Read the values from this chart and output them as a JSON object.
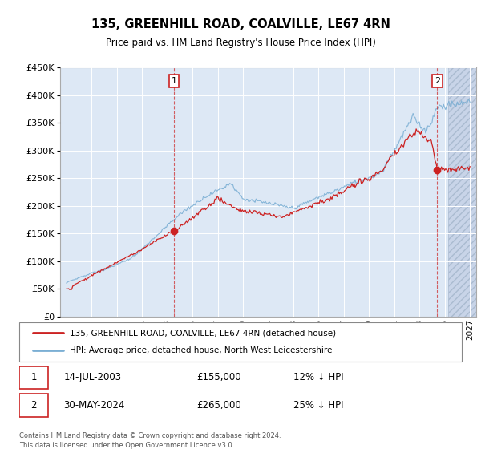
{
  "title": "135, GREENHILL ROAD, COALVILLE, LE67 4RN",
  "subtitle": "Price paid vs. HM Land Registry's House Price Index (HPI)",
  "legend_line1": "135, GREENHILL ROAD, COALVILLE, LE67 4RN (detached house)",
  "legend_line2": "HPI: Average price, detached house, North West Leicestershire",
  "annotation1_date": "14-JUL-2003",
  "annotation1_price": "£155,000",
  "annotation1_hpi": "12% ↓ HPI",
  "annotation2_date": "30-MAY-2024",
  "annotation2_price": "£265,000",
  "annotation2_hpi": "25% ↓ HPI",
  "footer": "Contains HM Land Registry data © Crown copyright and database right 2024.\nThis data is licensed under the Open Government Licence v3.0.",
  "hpi_color": "#7bafd4",
  "price_color": "#cc2222",
  "bg_color": "#dde8f5",
  "ylim": [
    0,
    450000
  ],
  "yticks": [
    0,
    50000,
    100000,
    150000,
    200000,
    250000,
    300000,
    350000,
    400000,
    450000
  ],
  "sale1_year": 2003.54,
  "sale1_price": 155000,
  "sale2_year": 2024.41,
  "sale2_price": 265000,
  "xmin": 1994.5,
  "xmax": 2027.5,
  "hatch_start": 2025.3
}
